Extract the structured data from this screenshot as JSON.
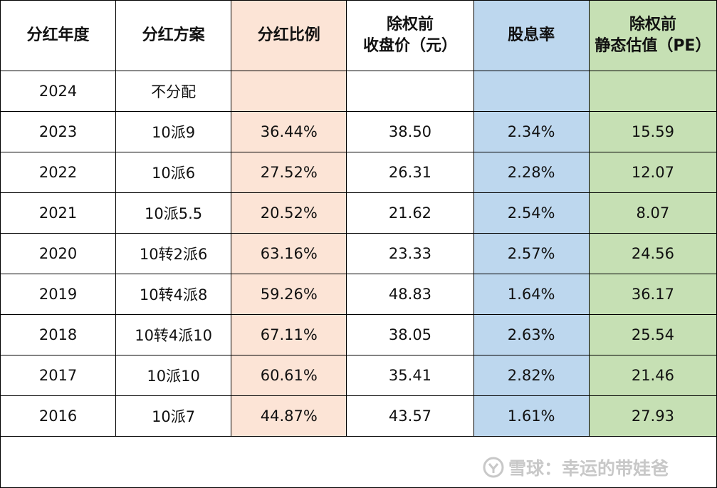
{
  "headers": [
    {
      "lines": [
        "分红年度"
      ]
    },
    {
      "lines": [
        "分红方案"
      ]
    },
    {
      "lines": [
        "分红比例"
      ]
    },
    {
      "lines": [
        "除权前",
        "收盘价（元）"
      ]
    },
    {
      "lines": [
        "股息率"
      ]
    },
    {
      "lines": [
        "除权前",
        "静态估值（PE）"
      ]
    }
  ],
  "rows": [
    [
      "2024",
      "不分配",
      "",
      "",
      "",
      ""
    ],
    [
      "2023",
      "10派9",
      "36.44%",
      "38.50",
      "2.34%",
      "15.59"
    ],
    [
      "2022",
      "10派6",
      "27.52%",
      "26.31",
      "2.28%",
      "12.07"
    ],
    [
      "2021",
      "10派5.5",
      "20.52%",
      "21.62",
      "2.54%",
      "8.07"
    ],
    [
      "2020",
      "10转2派6",
      "63.16%",
      "23.33",
      "2.57%",
      "24.56"
    ],
    [
      "2019",
      "10转4派8",
      "59.26%",
      "48.83",
      "1.64%",
      "36.17"
    ],
    [
      "2018",
      "10转4派10",
      "67.11%",
      "38.05",
      "2.63%",
      "25.54"
    ],
    [
      "2017",
      "10派10",
      "60.61%",
      "35.41",
      "2.82%",
      "21.46"
    ],
    [
      "2016",
      "10派7",
      "44.87%",
      "43.57",
      "1.61%",
      "27.93"
    ]
  ],
  "column_colors": [
    "#ffffff",
    "#ffffff",
    "#fce4d6",
    "#ffffff",
    "#bdd7ee",
    "#c6e0b4"
  ],
  "watermark": {
    "text": "雪球：幸运的带娃爸",
    "icon": "xueqiu-logo-icon"
  }
}
